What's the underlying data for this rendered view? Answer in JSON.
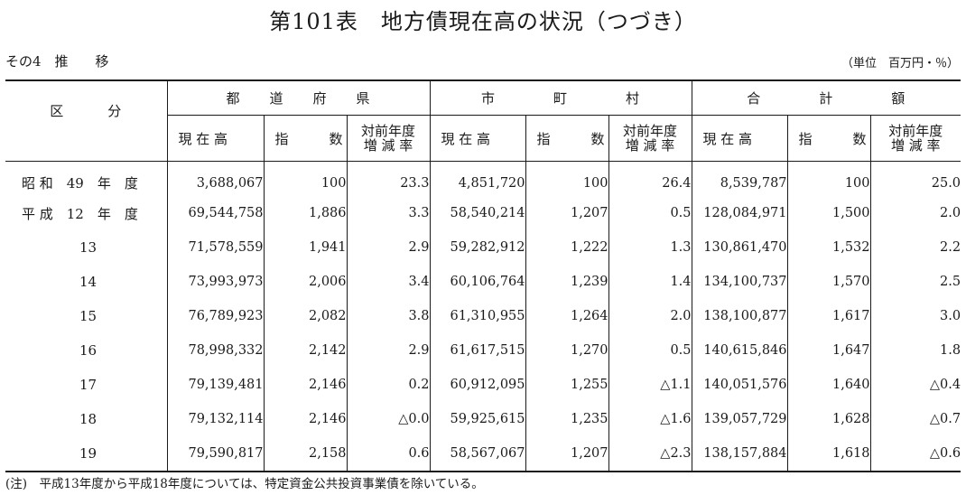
{
  "title": "第101表　地方債現在高の状況（つづき）",
  "subtitle": "その4　推　　移",
  "unit": "（単位　百万円・％）",
  "header": {
    "category": "区　　　分",
    "groups": [
      "都　　道　　府　　県",
      "市　　　　町　　　　村",
      "合　　　　計　　　　額"
    ],
    "cols": {
      "amount": "現 在 高",
      "index": "指　　　数",
      "rate_l1": "対前年度",
      "rate_l2": "増 減 率"
    }
  },
  "rows": [
    {
      "label": "昭 和　49　年　度",
      "p_amt": "3,688,067",
      "p_idx": "100",
      "p_rate": "23.3",
      "m_amt": "4,851,720",
      "m_idx": "100",
      "m_rate": "26.4",
      "t_amt": "8,539,787",
      "t_idx": "100",
      "t_rate": "25.0"
    },
    {
      "label": "平 成　12　年　度",
      "p_amt": "69,544,758",
      "p_idx": "1,886",
      "p_rate": "3.3",
      "m_amt": "58,540,214",
      "m_idx": "1,207",
      "m_rate": "0.5",
      "t_amt": "128,084,971",
      "t_idx": "1,500",
      "t_rate": "2.0"
    },
    {
      "label": "13",
      "p_amt": "71,578,559",
      "p_idx": "1,941",
      "p_rate": "2.9",
      "m_amt": "59,282,912",
      "m_idx": "1,222",
      "m_rate": "1.3",
      "t_amt": "130,861,470",
      "t_idx": "1,532",
      "t_rate": "2.2"
    },
    {
      "label": "14",
      "p_amt": "73,993,973",
      "p_idx": "2,006",
      "p_rate": "3.4",
      "m_amt": "60,106,764",
      "m_idx": "1,239",
      "m_rate": "1.4",
      "t_amt": "134,100,737",
      "t_idx": "1,570",
      "t_rate": "2.5"
    },
    {
      "label": "15",
      "p_amt": "76,789,923",
      "p_idx": "2,082",
      "p_rate": "3.8",
      "m_amt": "61,310,955",
      "m_idx": "1,264",
      "m_rate": "2.0",
      "t_amt": "138,100,877",
      "t_idx": "1,617",
      "t_rate": "3.0"
    },
    {
      "label": "16",
      "p_amt": "78,998,332",
      "p_idx": "2,142",
      "p_rate": "2.9",
      "m_amt": "61,617,515",
      "m_idx": "1,270",
      "m_rate": "0.5",
      "t_amt": "140,615,846",
      "t_idx": "1,647",
      "t_rate": "1.8"
    },
    {
      "label": "17",
      "p_amt": "79,139,481",
      "p_idx": "2,146",
      "p_rate": "0.2",
      "m_amt": "60,912,095",
      "m_idx": "1,255",
      "m_rate": "△1.1",
      "t_amt": "140,051,576",
      "t_idx": "1,640",
      "t_rate": "△0.4"
    },
    {
      "label": "18",
      "p_amt": "79,132,114",
      "p_idx": "2,146",
      "p_rate": "△0.0",
      "m_amt": "59,925,615",
      "m_idx": "1,235",
      "m_rate": "△1.6",
      "t_amt": "139,057,729",
      "t_idx": "1,628",
      "t_rate": "△0.7"
    },
    {
      "label": "19",
      "p_amt": "79,590,817",
      "p_idx": "2,158",
      "p_rate": "0.6",
      "m_amt": "58,567,067",
      "m_idx": "1,207",
      "m_rate": "△2.3",
      "t_amt": "138,157,884",
      "t_idx": "1,618",
      "t_rate": "△0.6"
    }
  ],
  "note": "(注)　平成13年度から平成18年度については、特定資金公共投資事業債を除いている。"
}
